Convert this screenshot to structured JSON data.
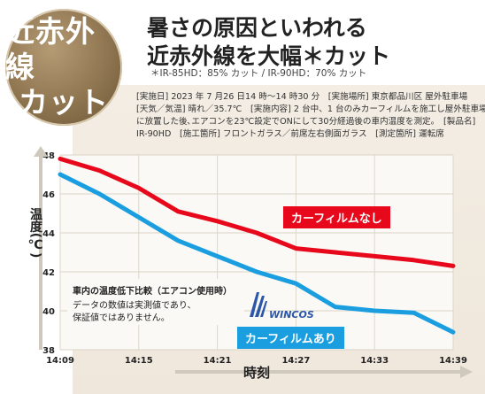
{
  "badge": {
    "line1": "近赤外線",
    "line2": "カット"
  },
  "header": {
    "line1": "暑さの原因といわれる",
    "line2": "近赤外線を大幅＊カット",
    "sub": "＊IR-85HD：85% カット / IR-90HD：70% カット"
  },
  "notes": [
    "[実施日] 2023 年 7 月26 日14 時～14 時30 分　[実施場所] 東京都品川区 屋外駐車場",
    "[天気／気温] 晴れ／35.7℃　[実施内容] 2 台中、1 台のみカーフィルムを施工し屋外駐車場",
    "に放置した後､エアコンを23℃設定でONにして30分経過後の車内温度を測定。　[製品名]",
    "IR-90HD　[施工箇所] フロントガラス／前席左右側面ガラス　[測定箇所] 運転席"
  ],
  "inset": {
    "title": "車内の温度低下比較（エアコン使用時）",
    "line1": "データの数値は実測値であり、",
    "line2": "保証値ではありません。"
  },
  "logo": {
    "text": "WINCOS"
  },
  "colors": {
    "red": "#e8081b",
    "blue": "#1a9ee0"
  },
  "chart_data": {
    "type": "line",
    "xlabel": "時刻",
    "ylabel": "温度(℃)",
    "ylim": [
      38,
      48
    ],
    "yticks": [
      38,
      40,
      42,
      44,
      46,
      48
    ],
    "xticks": [
      "14:09",
      "14:15",
      "14:21",
      "14:27",
      "14:33",
      "14:39"
    ],
    "x": [
      0,
      3,
      6,
      9,
      12,
      15,
      18,
      21,
      24,
      27,
      30
    ],
    "grid": true,
    "series": [
      {
        "name": "カーフィルムなし",
        "color": "#e8081b",
        "values": [
          47.8,
          47.2,
          46.3,
          45.1,
          44.6,
          44.0,
          43.2,
          43.0,
          42.8,
          42.6,
          42.3
        ]
      },
      {
        "name": "カーフィルムあり",
        "color": "#1a9ee0",
        "values": [
          47.0,
          46.0,
          44.8,
          43.6,
          42.8,
          42.0,
          41.4,
          40.2,
          40.0,
          39.9,
          38.9
        ]
      }
    ]
  }
}
